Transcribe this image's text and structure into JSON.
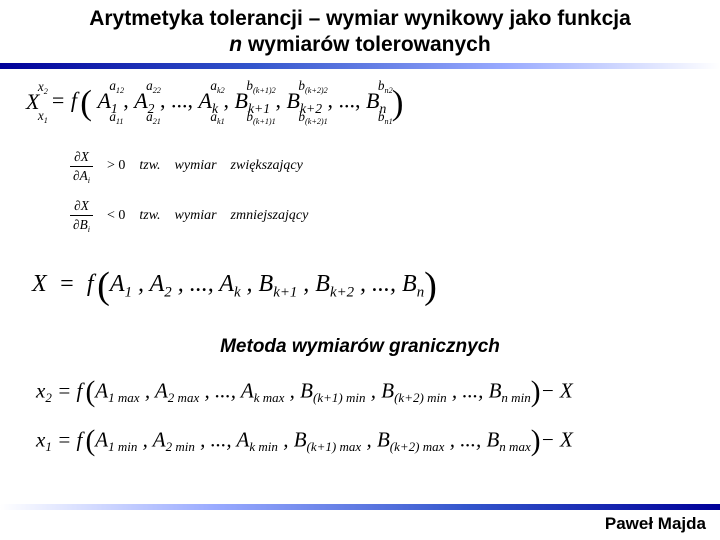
{
  "title_line1": "Arytmetyka tolerancji – wymiar wynikowy jako funkcja",
  "title_n": "n",
  "title_line2_rest": " wymiarów tolerowanych",
  "eq1": {
    "lhs_base": "X",
    "t1_base": "A",
    "t1_idx": "1",
    "t1_sup": "a₁₂",
    "t1_sub": "a₁₁",
    "t2_base": "A",
    "t2_idx": "2",
    "t2_sup": "a₂₂",
    "t2_sub": "a₂₁",
    "dots": ", ..., ",
    "t3_base": "A",
    "t3_idx": "k",
    "t3_sup": "a_{k2}",
    "t3_sub": "a_{k1}",
    "t4_base": "B",
    "t4_idx": "k+1",
    "t4_sup": "b_{(k+1)2}",
    "t4_sub": "b_{(k+1)1}",
    "t5_base": "B",
    "t5_idx": "k+2",
    "t5_sup": "b_{(k+2)2}",
    "t5_sub": "b_{(k+2)1}",
    "t6_base": "B",
    "t6_idx": "n",
    "t6_sup": "b_{n2}",
    "t6_sub": "b_{n1}"
  },
  "cond1": {
    "num": "∂X",
    "den": "∂A",
    "den_sub": "i",
    "rel": "> 0",
    "txt1": "tzw.",
    "txt2": "wymiar",
    "txt3": "zwiększający"
  },
  "cond2": {
    "num": "∂X",
    "den": "∂B",
    "den_sub": "i",
    "rel": "< 0",
    "txt1": "tzw.",
    "txt2": "wymiar",
    "txt3": "zmniejszający"
  },
  "eq3": "X = f ( A₁ , A₂ , ..., A_k , B_{k+1} , B_{k+2} , ..., B_n )",
  "subtitle": "Metoda wymiarów granicznych",
  "eq4": {
    "lhs": "x",
    "lhs_sub": "2",
    "terms": [
      "A₁ max",
      "A₂ max",
      "...",
      "A_{k max}",
      "B_{(k+1) min}",
      "B_{(k+2) min}",
      "...",
      "B_{n min}"
    ],
    "tail": "− X"
  },
  "eq5": {
    "lhs": "x",
    "lhs_sub": "1",
    "terms": [
      "A₁ min",
      "A₂ min",
      "...",
      "A_{k min}",
      "B_{(k+1) max}",
      "B_{(k+2) max}",
      "...",
      "B_{n max}"
    ],
    "tail": "− X"
  },
  "author": "Paweł Majda",
  "colors": {
    "gradient_dark": "#000099",
    "gradient_mid": "#3355cc",
    "gradient_light": "#99aaff",
    "background": "#ffffff",
    "text": "#000000"
  }
}
